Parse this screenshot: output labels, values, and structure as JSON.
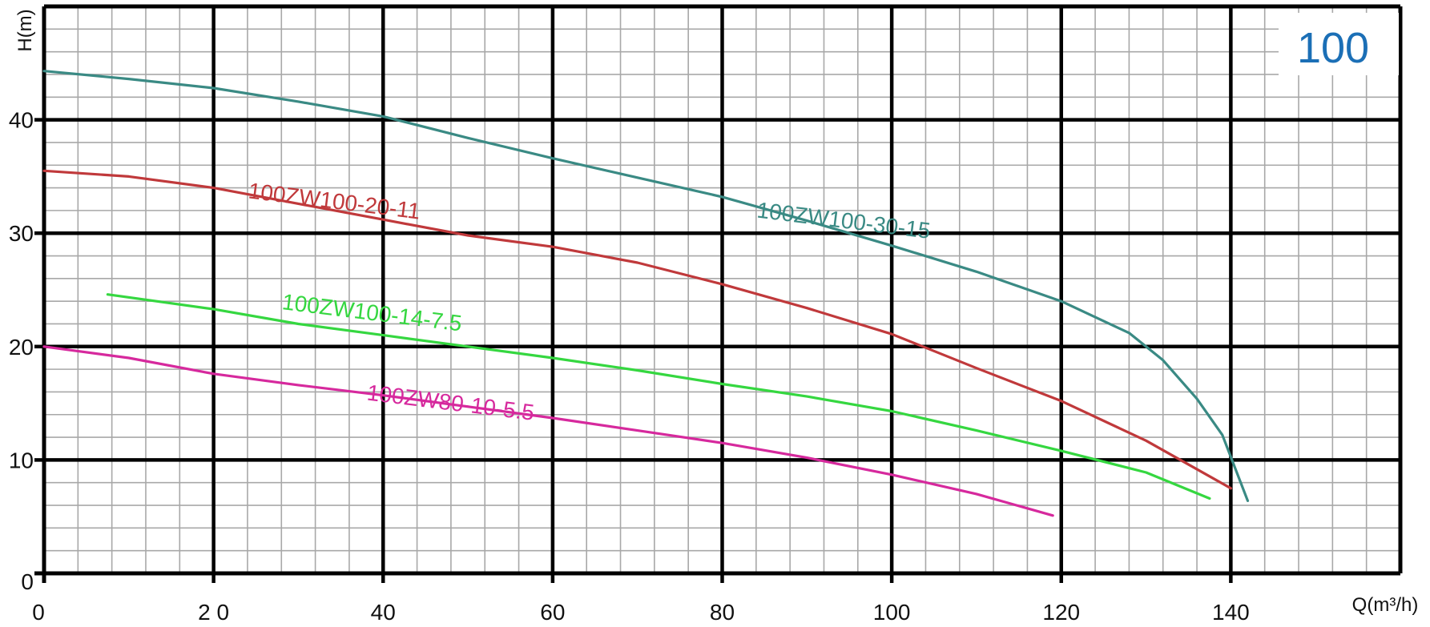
{
  "chart_data": {
    "type": "line",
    "badge": "100",
    "xlabel": "Q(m³/h)",
    "ylabel": "H(m)",
    "xlim": [
      0,
      160
    ],
    "ylim": [
      0,
      50
    ],
    "x_ticks": [
      {
        "value": 0,
        "label": "0"
      },
      {
        "value": 20,
        "label": "2 0"
      },
      {
        "value": 40,
        "label": "40"
      },
      {
        "value": 60,
        "label": "60"
      },
      {
        "value": 80,
        "label": "80"
      },
      {
        "value": 100,
        "label": "100"
      },
      {
        "value": 120,
        "label": "120"
      },
      {
        "value": 140,
        "label": "140"
      }
    ],
    "y_ticks": [
      {
        "value": 0,
        "label": "0"
      },
      {
        "value": 10,
        "label": "10"
      },
      {
        "value": 20,
        "label": "20"
      },
      {
        "value": 30,
        "label": "30"
      },
      {
        "value": 40,
        "label": "40"
      }
    ],
    "grid": {
      "minor_x_step": 4,
      "minor_y_step": 2,
      "major_x_step": 20,
      "major_y_step": 10
    },
    "colors": {
      "major_grid": "#000000",
      "minor_grid": "#a8a8a8",
      "badge": "#1b6fb6"
    },
    "series": [
      {
        "name": "100ZW100-30-15",
        "color": "#3a8a84",
        "label_at": [
          84,
          31.4
        ],
        "label_angle": 7,
        "points": [
          [
            0,
            44.3
          ],
          [
            10,
            43.6
          ],
          [
            20,
            42.8
          ],
          [
            30,
            41.6
          ],
          [
            40,
            40.3
          ],
          [
            50,
            38.4
          ],
          [
            60,
            36.6
          ],
          [
            70,
            34.9
          ],
          [
            80,
            33.2
          ],
          [
            90,
            31.1
          ],
          [
            100,
            28.9
          ],
          [
            110,
            26.6
          ],
          [
            120,
            24.0
          ],
          [
            128,
            21.2
          ],
          [
            132,
            18.8
          ],
          [
            136,
            15.4
          ],
          [
            139,
            12.2
          ],
          [
            142,
            6.4
          ]
        ]
      },
      {
        "name": "100ZW100-20-11",
        "color": "#c0393b",
        "label_at": [
          24,
          33.1
        ],
        "label_angle": 7,
        "points": [
          [
            0,
            35.5
          ],
          [
            10,
            35.0
          ],
          [
            20,
            34.0
          ],
          [
            30,
            32.6
          ],
          [
            40,
            31.2
          ],
          [
            50,
            29.8
          ],
          [
            60,
            28.8
          ],
          [
            70,
            27.4
          ],
          [
            80,
            25.5
          ],
          [
            90,
            23.4
          ],
          [
            100,
            21.1
          ],
          [
            110,
            18.1
          ],
          [
            120,
            15.2
          ],
          [
            130,
            11.7
          ],
          [
            140,
            7.5
          ]
        ]
      },
      {
        "name": "100ZW100-14-7.5",
        "color": "#35d740",
        "label_at": [
          28,
          23.3
        ],
        "label_angle": 7,
        "points": [
          [
            7.5,
            24.6
          ],
          [
            20,
            23.3
          ],
          [
            30,
            22.0
          ],
          [
            40,
            21.0
          ],
          [
            50,
            20.0
          ],
          [
            60,
            19.0
          ],
          [
            70,
            17.9
          ],
          [
            80,
            16.7
          ],
          [
            90,
            15.6
          ],
          [
            100,
            14.3
          ],
          [
            110,
            12.6
          ],
          [
            120,
            10.8
          ],
          [
            130,
            8.9
          ],
          [
            137.5,
            6.6
          ]
        ]
      },
      {
        "name": "100ZW80-10-5.5",
        "color": "#d6299d",
        "label_at": [
          38,
          15.3
        ],
        "label_angle": 7,
        "points": [
          [
            0,
            20.0
          ],
          [
            10,
            19.0
          ],
          [
            20,
            17.6
          ],
          [
            30,
            16.6
          ],
          [
            40,
            15.7
          ],
          [
            50,
            14.7
          ],
          [
            60,
            13.7
          ],
          [
            70,
            12.6
          ],
          [
            80,
            11.5
          ],
          [
            90,
            10.2
          ],
          [
            100,
            8.7
          ],
          [
            110,
            7.0
          ],
          [
            119,
            5.1
          ]
        ]
      }
    ]
  }
}
